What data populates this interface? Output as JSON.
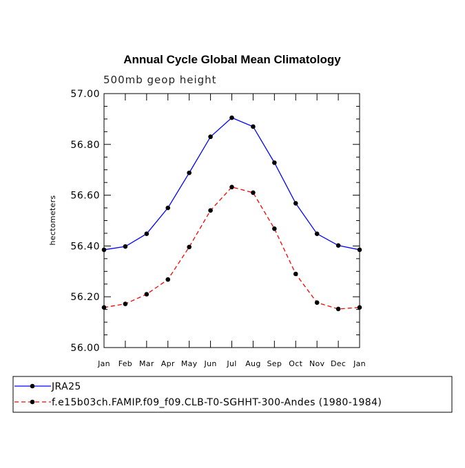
{
  "chart_data": {
    "type": "line",
    "title": "Annual Cycle Global Mean Climatology",
    "subtitle": "500mb geop height",
    "xlabel": "",
    "ylabel": "hectometers",
    "categories": [
      "Jan",
      "Feb",
      "Mar",
      "Apr",
      "May",
      "Jun",
      "Jul",
      "Aug",
      "Sep",
      "Oct",
      "Nov",
      "Dec",
      "Jan"
    ],
    "ylim": [
      56.0,
      57.0
    ],
    "yticks": [
      "56.00",
      "56.20",
      "56.40",
      "56.60",
      "56.80",
      "57.00"
    ],
    "grid": false,
    "legend_position": "bottom",
    "series": [
      {
        "name": "JRA25",
        "color": "#0000ff",
        "dash": "solid",
        "marker": "filled-circle",
        "values": [
          56.385,
          56.398,
          56.448,
          56.55,
          56.688,
          56.83,
          56.905,
          56.87,
          56.728,
          56.568,
          56.448,
          56.402,
          56.385
        ]
      },
      {
        "name": "f.e15b03ch.FAMIP.f09_f09.CLB-T0-SGHHT-300-Andes (1980-1984)",
        "color": "#ff0000",
        "dash": "dashed",
        "marker": "filled-circle",
        "values": [
          56.158,
          56.172,
          56.21,
          56.268,
          56.396,
          56.54,
          56.632,
          56.61,
          56.468,
          56.29,
          56.177,
          56.152,
          56.158
        ]
      }
    ]
  }
}
